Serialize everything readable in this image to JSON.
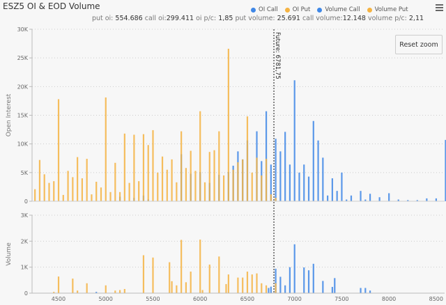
{
  "header": {
    "title": "ESZ5 OI & EOD Volume",
    "menu_icon": "hamburger-menu-icon"
  },
  "legend": [
    {
      "label": "OI Call",
      "color": "#3f87e6"
    },
    {
      "label": "OI Put",
      "color": "#f5b342"
    },
    {
      "label": "Volume Call",
      "color": "#3f87e6"
    },
    {
      "label": "Volume Put",
      "color": "#f5b342"
    }
  ],
  "subtitle": {
    "put_oi_label": "put oi:",
    "put_oi": "554.686",
    "call_oi_label": "call oi:",
    "call_oi": "299.411",
    "oi_pc_label": "oi p/c:",
    "oi_pc": "1,85",
    "put_volume_label": "put volume:",
    "put_volume": "25.691",
    "call_volume_label": "call volume:",
    "call_volume": "12.148",
    "volume_pc_label": "volume p/c:",
    "volume_pc": "2,11"
  },
  "reset_zoom_label": "Reset zoom",
  "future_line": {
    "label": "Future: 6781,75",
    "value": 6781.75
  },
  "chart_data": [
    {
      "type": "bar",
      "title": "ESZ5 OI & EOD Volume",
      "ylabel": "Open Interest",
      "xlim": [
        4220,
        8590
      ],
      "ylim": [
        0,
        30000
      ],
      "yticks": [
        "0",
        "5K",
        "10K",
        "15K",
        "20K",
        "25K",
        "30K"
      ],
      "ytick_values": [
        0,
        5000,
        10000,
        15000,
        20000,
        25000,
        30000
      ],
      "grid": true,
      "series": [
        {
          "name": "OI Call",
          "color": "#3f87e6",
          "points": [
            [
              5150,
              800
            ],
            [
              5300,
              600
            ],
            [
              5400,
              1000
            ],
            [
              5450,
              300
            ],
            [
              5800,
              8200
            ],
            [
              5900,
              4800
            ],
            [
              6000,
              5100
            ],
            [
              6100,
              3200
            ],
            [
              6200,
              4600
            ],
            [
              6300,
              5100
            ],
            [
              6350,
              6200
            ],
            [
              6400,
              8700
            ],
            [
              6450,
              7300
            ],
            [
              6500,
              10600
            ],
            [
              6600,
              12200
            ],
            [
              6650,
              7000
            ],
            [
              6700,
              15700
            ],
            [
              6750,
              6400
            ],
            [
              6800,
              10900
            ],
            [
              6850,
              8700
            ],
            [
              6900,
              12100
            ],
            [
              6950,
              6400
            ],
            [
              7000,
              21100
            ],
            [
              7050,
              5000
            ],
            [
              7100,
              6400
            ],
            [
              7150,
              4300
            ],
            [
              7200,
              14000
            ],
            [
              7250,
              10600
            ],
            [
              7300,
              7600
            ],
            [
              7350,
              1000
            ],
            [
              7400,
              4000
            ],
            [
              7450,
              1800
            ],
            [
              7500,
              5000
            ],
            [
              7550,
              300
            ],
            [
              7600,
              1000
            ],
            [
              7700,
              1800
            ],
            [
              7750,
              300
            ],
            [
              7800,
              1300
            ],
            [
              7900,
              700
            ],
            [
              8000,
              1400
            ],
            [
              8100,
              300
            ],
            [
              8200,
              200
            ],
            [
              8300,
              200
            ],
            [
              8400,
              500
            ],
            [
              8500,
              500
            ],
            [
              8600,
              10700
            ]
          ]
        },
        {
          "name": "OI Put",
          "color": "#f5b342",
          "points": [
            [
              4250,
              2100
            ],
            [
              4300,
              7200
            ],
            [
              4350,
              4700
            ],
            [
              4400,
              3200
            ],
            [
              4450,
              3500
            ],
            [
              4500,
              17800
            ],
            [
              4550,
              1100
            ],
            [
              4600,
              5300
            ],
            [
              4650,
              4200
            ],
            [
              4700,
              7700
            ],
            [
              4750,
              4000
            ],
            [
              4800,
              7400
            ],
            [
              4850,
              1200
            ],
            [
              4900,
              3400
            ],
            [
              4950,
              2400
            ],
            [
              5000,
              18100
            ],
            [
              5050,
              1600
            ],
            [
              5100,
              6700
            ],
            [
              5150,
              1600
            ],
            [
              5200,
              11800
            ],
            [
              5250,
              3200
            ],
            [
              5300,
              11600
            ],
            [
              5350,
              3500
            ],
            [
              5400,
              11700
            ],
            [
              5450,
              9800
            ],
            [
              5500,
              12400
            ],
            [
              5550,
              5000
            ],
            [
              5600,
              7800
            ],
            [
              5650,
              5500
            ],
            [
              5700,
              7300
            ],
            [
              5750,
              3300
            ],
            [
              5800,
              12200
            ],
            [
              5850,
              5800
            ],
            [
              5900,
              8800
            ],
            [
              5950,
              5300
            ],
            [
              6000,
              15700
            ],
            [
              6050,
              3300
            ],
            [
              6100,
              8600
            ],
            [
              6150,
              8900
            ],
            [
              6200,
              12200
            ],
            [
              6250,
              4500
            ],
            [
              6300,
              26600
            ],
            [
              6350,
              5500
            ],
            [
              6400,
              6800
            ],
            [
              6450,
              7300
            ],
            [
              6500,
              14800
            ],
            [
              6550,
              5000
            ],
            [
              6600,
              7600
            ],
            [
              6650,
              4500
            ],
            [
              6700,
              7400
            ],
            [
              6750,
              1200
            ],
            [
              6800,
              600
            ]
          ]
        }
      ]
    },
    {
      "type": "bar",
      "ylabel": "Volume",
      "xlabel": "",
      "xlim": [
        4220,
        8590
      ],
      "ylim": [
        0,
        3000
      ],
      "yticks": [
        "0",
        "1K",
        "2K",
        "3K"
      ],
      "ytick_values": [
        0,
        1000,
        2000,
        3000
      ],
      "xticks": [
        "4500",
        "5000",
        "5500",
        "6000",
        "6500",
        "7000",
        "7500",
        "8000",
        "8500"
      ],
      "xtick_values": [
        4500,
        5000,
        5500,
        6000,
        6500,
        7000,
        7500,
        8000,
        8500
      ],
      "grid": true,
      "series": [
        {
          "name": "Volume Call",
          "color": "#3f87e6",
          "points": [
            [
              4900,
              50
            ],
            [
              6725,
              200
            ],
            [
              6750,
              250
            ],
            [
              6800,
              940
            ],
            [
              6850,
              630
            ],
            [
              6900,
              300
            ],
            [
              6950,
              1000
            ],
            [
              7000,
              1880
            ],
            [
              7100,
              990
            ],
            [
              7150,
              880
            ],
            [
              7200,
              1130
            ],
            [
              7300,
              470
            ],
            [
              7400,
              240
            ],
            [
              7425,
              580
            ],
            [
              7700,
              200
            ],
            [
              7750,
              200
            ],
            [
              7800,
              100
            ]
          ]
        },
        {
          "name": "Volume Put",
          "color": "#f5b342",
          "points": [
            [
              4450,
              50
            ],
            [
              4500,
              640
            ],
            [
              4650,
              560
            ],
            [
              4700,
              100
            ],
            [
              4800,
              380
            ],
            [
              5000,
              300
            ],
            [
              5100,
              100
            ],
            [
              5150,
              120
            ],
            [
              5200,
              160
            ],
            [
              5400,
              1460
            ],
            [
              5500,
              1370
            ],
            [
              5675,
              1190
            ],
            [
              5700,
              460
            ],
            [
              5750,
              300
            ],
            [
              5800,
              2050
            ],
            [
              5850,
              420
            ],
            [
              5900,
              830
            ],
            [
              6000,
              2060
            ],
            [
              6025,
              120
            ],
            [
              6100,
              1100
            ],
            [
              6200,
              1410
            ],
            [
              6275,
              350
            ],
            [
              6300,
              720
            ],
            [
              6400,
              600
            ],
            [
              6450,
              600
            ],
            [
              6500,
              830
            ],
            [
              6550,
              720
            ],
            [
              6600,
              760
            ],
            [
              6650,
              380
            ],
            [
              6700,
              300
            ],
            [
              6800,
              380
            ]
          ]
        }
      ]
    }
  ]
}
